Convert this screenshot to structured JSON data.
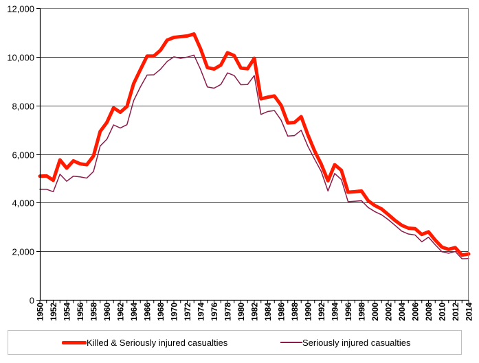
{
  "chart_data": {
    "type": "line",
    "title": "",
    "xlabel": "",
    "ylabel": "",
    "x": [
      1950,
      1951,
      1952,
      1953,
      1954,
      1955,
      1956,
      1957,
      1958,
      1959,
      1960,
      1961,
      1962,
      1963,
      1964,
      1965,
      1966,
      1967,
      1968,
      1969,
      1970,
      1971,
      1972,
      1973,
      1974,
      1975,
      1976,
      1977,
      1978,
      1979,
      1980,
      1981,
      1982,
      1983,
      1984,
      1985,
      1986,
      1987,
      1988,
      1989,
      1990,
      1991,
      1992,
      1993,
      1994,
      1995,
      1996,
      1997,
      1998,
      1999,
      2000,
      2001,
      2002,
      2003,
      2004,
      2005,
      2006,
      2007,
      2008,
      2009,
      2010,
      2011,
      2012,
      2013,
      2014
    ],
    "xlim": [
      1950,
      2014
    ],
    "ylim": [
      0,
      12000
    ],
    "yticks": [
      0,
      2000,
      4000,
      6000,
      8000,
      10000,
      12000
    ],
    "ytick_labels": [
      "0",
      "2,000",
      "4,000",
      "6,000",
      "8,000",
      "10,000",
      "12,000"
    ],
    "xtick_labels": [
      "1950",
      "1952",
      "1954",
      "1956",
      "1958",
      "1960",
      "1962",
      "1964",
      "1966",
      "1968",
      "1970",
      "1972",
      "1974",
      "1976",
      "1978",
      "1980",
      "1982",
      "1984",
      "1986",
      "1988",
      "1990",
      "1992",
      "1994",
      "1996",
      "1998",
      "2000",
      "2002",
      "2004",
      "2006",
      "2008",
      "2010",
      "2012",
      "2014"
    ],
    "grid": true,
    "legend_position": "bottom",
    "series": [
      {
        "name": "Killed & Seriously injured casualties",
        "color": "#ff1a00",
        "values": [
          5090,
          5100,
          4920,
          5760,
          5420,
          5720,
          5600,
          5560,
          5920,
          6930,
          7300,
          7900,
          7720,
          7960,
          8900,
          9470,
          10030,
          10030,
          10270,
          10690,
          10800,
          10830,
          10860,
          10940,
          10320,
          9560,
          9500,
          9660,
          10170,
          10050,
          9540,
          9510,
          9940,
          8270,
          8340,
          8390,
          8010,
          7280,
          7300,
          7540,
          6790,
          6130,
          5580,
          4900,
          5560,
          5330,
          4430,
          4450,
          4480,
          4080,
          3880,
          3740,
          3510,
          3270,
          3070,
          2950,
          2930,
          2690,
          2800,
          2460,
          2170,
          2080,
          2150,
          1840,
          1890
        ]
      },
      {
        "name": "Seriously injured casualties",
        "color": "#8b1a4a",
        "values": [
          4550,
          4550,
          4450,
          5170,
          4880,
          5090,
          5060,
          5010,
          5280,
          6330,
          6610,
          7200,
          7070,
          7210,
          8200,
          8760,
          9250,
          9260,
          9490,
          9810,
          10000,
          9940,
          9990,
          10070,
          9470,
          8760,
          8710,
          8860,
          9340,
          9230,
          8850,
          8860,
          9230,
          7630,
          7750,
          7790,
          7400,
          6740,
          6760,
          6980,
          6320,
          5790,
          5280,
          4480,
          5200,
          4950,
          4040,
          4060,
          4080,
          3800,
          3630,
          3500,
          3300,
          3070,
          2830,
          2710,
          2670,
          2390,
          2580,
          2270,
          1980,
          1920,
          1990,
          1690,
          1700
        ]
      }
    ]
  }
}
